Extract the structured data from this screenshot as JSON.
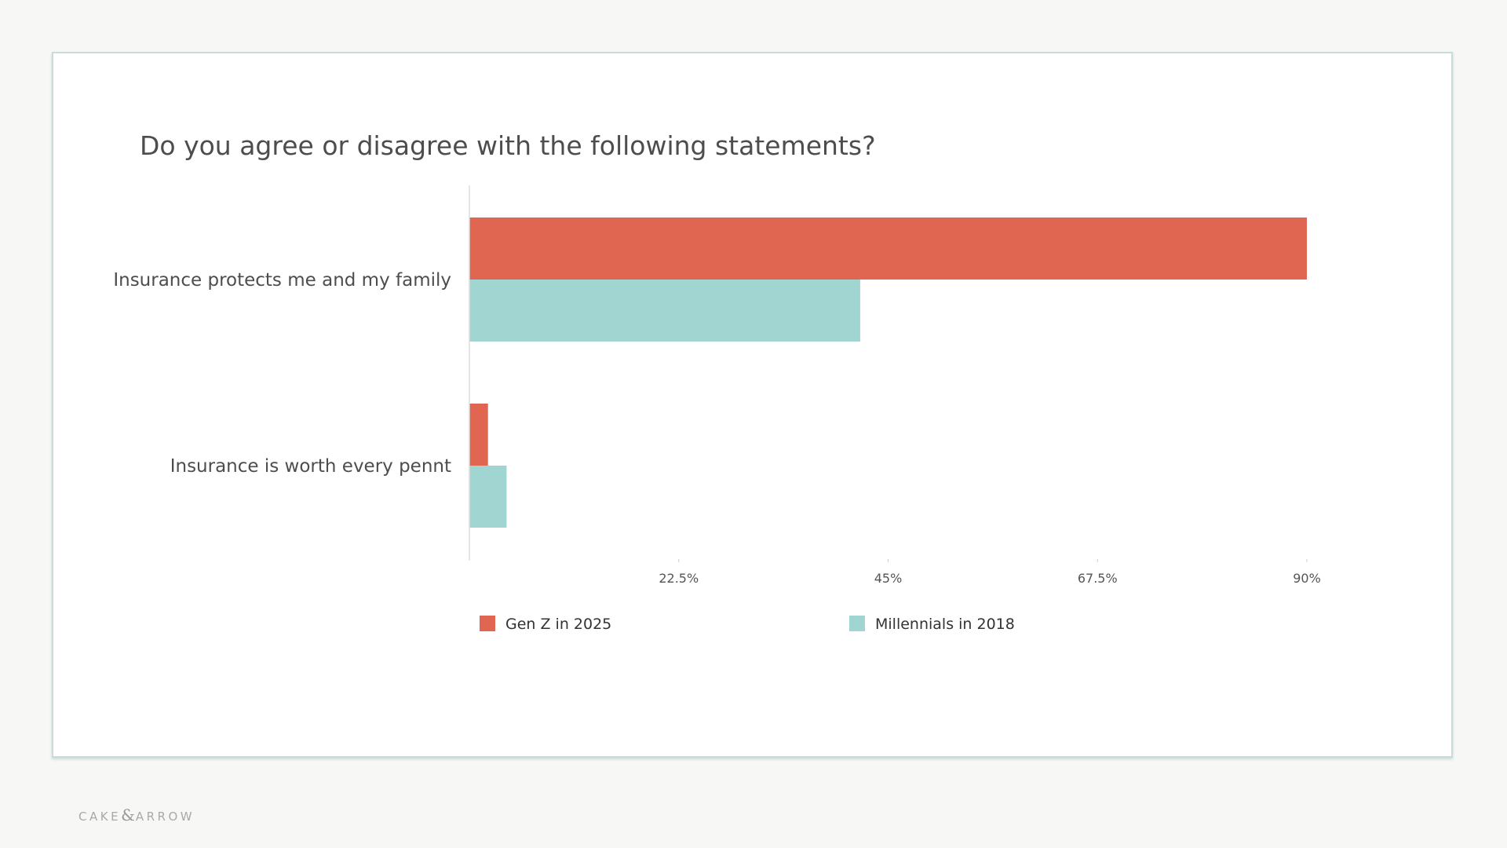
{
  "chart_data": {
    "type": "bar",
    "orientation": "horizontal",
    "title": "Do you agree or disagree with the following statements?",
    "categories": [
      "Insurance protects me and my family",
      "Insurance is worth every pennt"
    ],
    "series": [
      {
        "name": "Gen Z in 2025",
        "color": "#e06651",
        "values": [
          90,
          2
        ]
      },
      {
        "name": "Millennials in 2018",
        "color": "#a1d5d1",
        "values": [
          42,
          4
        ]
      }
    ],
    "xlim": [
      0,
      90
    ],
    "xticks": [
      22.5,
      45,
      67.5,
      90
    ],
    "xtick_labels": [
      "22.5%",
      "45%",
      "67.5%",
      "90%"
    ],
    "grid": false,
    "legend": "bottom"
  },
  "brand": {
    "left": "CAKE",
    "amp": "&",
    "right": "ARROW"
  }
}
